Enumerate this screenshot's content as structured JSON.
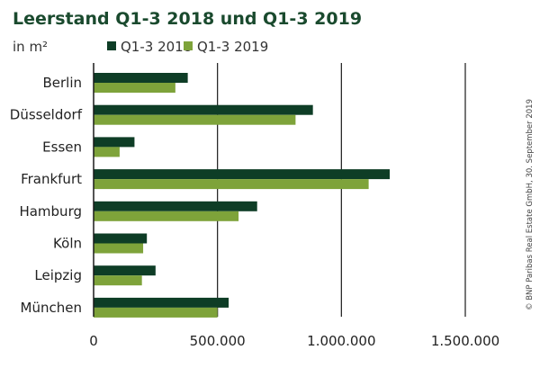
{
  "colors": {
    "title": "#1a4a2e",
    "series_2018": "#0e3d26",
    "series_2019": "#7ea33a",
    "grid": "#1a1a1a",
    "axis": "#1a1a1a"
  },
  "chart_data": {
    "type": "bar",
    "orientation": "horizontal",
    "title": "Leerstand Q1-3 2018 und Q1-3 2019",
    "unit_label": "in m²",
    "categories": [
      "Berlin",
      "Düsseldorf",
      "Essen",
      "Frankfurt",
      "Hamburg",
      "Köln",
      "Leipzig",
      "München"
    ],
    "series": [
      {
        "name": "Q1-3 2018",
        "values": [
          380000,
          885000,
          165000,
          1195000,
          660000,
          215000,
          250000,
          545000
        ]
      },
      {
        "name": "Q1-3 2019",
        "values": [
          330000,
          815000,
          105000,
          1110000,
          585000,
          200000,
          195000,
          500000
        ]
      }
    ],
    "xlim": [
      0,
      1500000
    ],
    "xticks": [
      0,
      500000,
      1000000,
      1500000
    ],
    "xtick_labels": [
      "0",
      "500.000",
      "1.000.000",
      "1.500.000"
    ],
    "grid": true,
    "legend_position": "top",
    "source_note": "© BNP Paribas Real Estate GmbH, 30. September 2019"
  }
}
